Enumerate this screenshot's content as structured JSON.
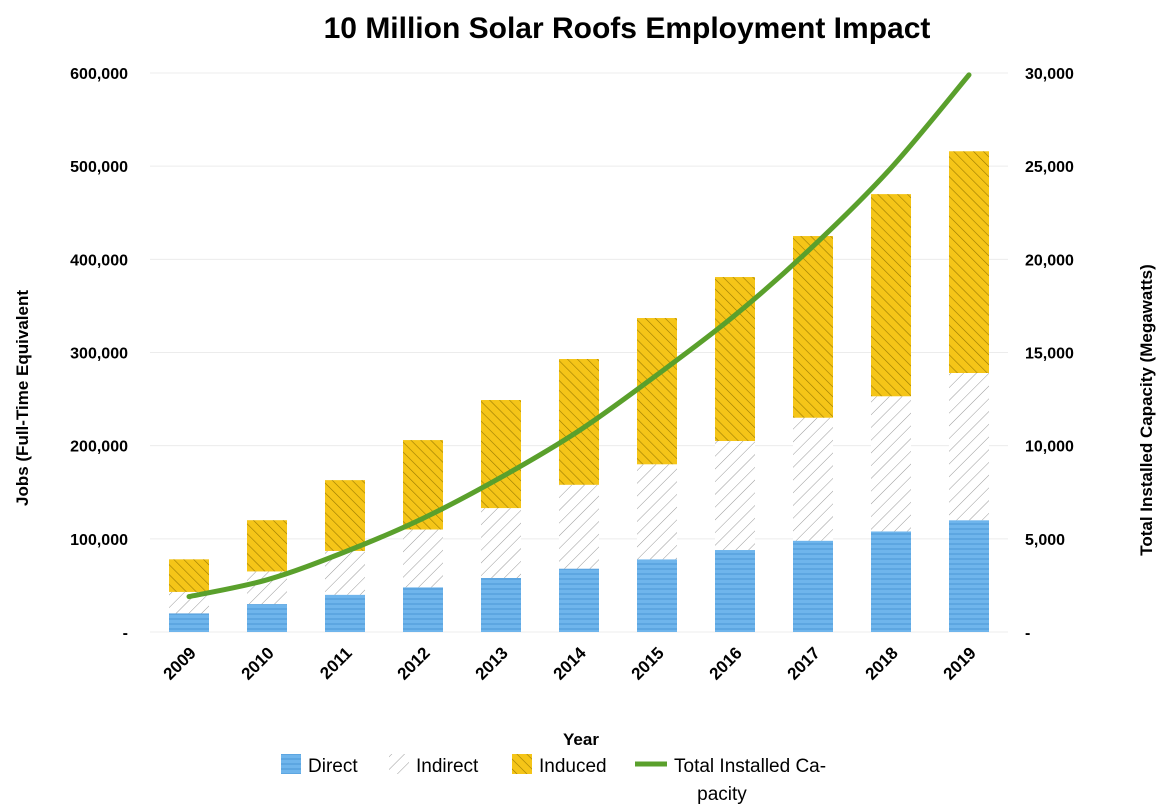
{
  "chart_data": {
    "type": "bar",
    "title": "10 Million Solar Roofs Employment Impact",
    "xlabel": "Year",
    "ylabel": "Jobs (Full-Time Equivalent",
    "y2label": "Total Installed Capacity (Megawatts)",
    "categories": [
      "2009",
      "2010",
      "2011",
      "2012",
      "2013",
      "2014",
      "2015",
      "2016",
      "2017",
      "2018",
      "2019"
    ],
    "stacked": true,
    "ylim": [
      0,
      600000
    ],
    "y2lim": [
      0,
      30000
    ],
    "yticks": [
      "-",
      "100,000",
      "200,000",
      "300,000",
      "400,000",
      "500,000",
      "600,000"
    ],
    "y2ticks": [
      "-",
      "5,000",
      "10,000",
      "15,000",
      "20,000",
      "25,000",
      "30,000"
    ],
    "series": [
      {
        "name": "Direct",
        "type": "bar",
        "color": "#6fb5ec",
        "values": [
          20000,
          30000,
          40000,
          48000,
          58000,
          68000,
          78000,
          88000,
          98000,
          108000,
          120000
        ]
      },
      {
        "name": "Indirect",
        "type": "bar",
        "color": "#ffffff",
        "values": [
          23000,
          35000,
          47000,
          62000,
          75000,
          90000,
          102000,
          117000,
          132000,
          145000,
          158000
        ]
      },
      {
        "name": "Induced",
        "type": "bar",
        "color": "#f5c518",
        "values": [
          35000,
          55000,
          76000,
          96000,
          116000,
          135000,
          157000,
          176000,
          195000,
          217000,
          238000
        ]
      },
      {
        "name": "Total Installed Capacity",
        "type": "line",
        "axis": "right",
        "color": "#5aa02c",
        "values": [
          1900,
          2800,
          4300,
          6100,
          8300,
          10800,
          13800,
          17000,
          20700,
          24900,
          29900
        ]
      }
    ],
    "legend": {
      "position": "bottom",
      "labels": [
        "Direct",
        "Indirect",
        "Induced",
        "Total Installed Ca-",
        "pacity"
      ]
    },
    "grid": true
  }
}
